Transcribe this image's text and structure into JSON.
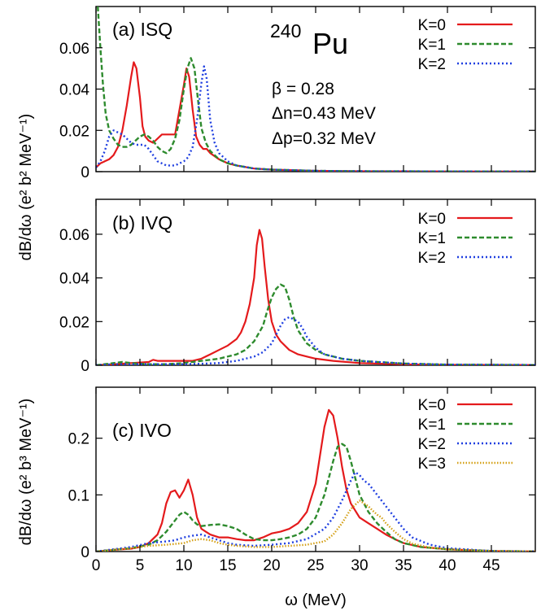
{
  "chart_data": [
    {
      "type": "line",
      "panel_label": "(a) ISQ",
      "ylabel": "dB/dω (e² b² MeV⁻¹)",
      "xlim": [
        0,
        50
      ],
      "ylim": [
        0,
        0.08
      ],
      "yticks": [
        "0",
        "0.02",
        "0.04",
        "0.06"
      ],
      "ytick_values": [
        0,
        0.02,
        0.04,
        0.06
      ],
      "nucleus": {
        "mass": "240",
        "symbol": "Pu"
      },
      "annotations": [
        "β = 0.28",
        "Δn=0.43 MeV",
        "Δp=0.32 MeV"
      ],
      "legend_position": "top-right",
      "series": [
        {
          "name": "K=0",
          "color": "#e41a1c",
          "dash": "solid",
          "x": [
            0,
            0.5,
            1,
            1.5,
            2,
            2.5,
            3,
            3.5,
            4,
            4.3,
            4.6,
            5,
            5.3,
            5.6,
            6,
            6.5,
            7,
            7.5,
            8,
            8.5,
            9,
            9.5,
            10,
            10.3,
            10.6,
            11,
            11.4,
            11.8,
            12.2,
            12.6,
            13,
            14,
            15,
            16,
            18,
            20,
            25,
            30,
            40,
            50
          ],
          "y": [
            0.002,
            0.004,
            0.005,
            0.006,
            0.008,
            0.012,
            0.02,
            0.032,
            0.046,
            0.053,
            0.05,
            0.036,
            0.022,
            0.017,
            0.015,
            0.014,
            0.016,
            0.018,
            0.018,
            0.018,
            0.018,
            0.03,
            0.042,
            0.05,
            0.046,
            0.03,
            0.017,
            0.013,
            0.011,
            0.011,
            0.009,
            0.006,
            0.004,
            0.003,
            0.0015,
            0.001,
            0.0004,
            0.0002,
            0.0001,
            5e-05
          ]
        },
        {
          "name": "K=1",
          "color": "#2e8b2e",
          "dash": "6,3",
          "x": [
            0.2,
            0.5,
            0.8,
            1.1,
            1.5,
            2,
            2.5,
            3,
            3.5,
            4,
            4.5,
            5,
            5.5,
            6,
            6.5,
            7,
            7.5,
            8,
            8.5,
            9,
            9.5,
            10,
            10.4,
            10.8,
            11.2,
            11.6,
            12,
            12.5,
            13,
            14,
            15,
            16,
            18,
            20,
            25,
            30,
            40,
            50
          ],
          "y": [
            0.08,
            0.06,
            0.042,
            0.028,
            0.02,
            0.016,
            0.013,
            0.012,
            0.012,
            0.013,
            0.015,
            0.017,
            0.018,
            0.017,
            0.015,
            0.012,
            0.01,
            0.009,
            0.011,
            0.016,
            0.025,
            0.04,
            0.05,
            0.055,
            0.05,
            0.035,
            0.021,
            0.014,
            0.01,
            0.006,
            0.004,
            0.003,
            0.0015,
            0.001,
            0.0004,
            0.0002,
            0.0001,
            5e-05
          ]
        },
        {
          "name": "K=2",
          "color": "#1f3fe0",
          "dash": "2,3",
          "x": [
            0,
            0.5,
            1,
            1.5,
            2,
            2.5,
            3,
            3.5,
            4,
            4.5,
            5,
            5.5,
            6,
            6.5,
            7,
            7.5,
            8,
            8.5,
            9,
            9.5,
            10,
            10.5,
            11,
            11.5,
            12,
            12.3,
            12.6,
            13,
            13.5,
            14,
            15,
            16,
            18,
            20,
            25,
            30,
            40,
            50
          ],
          "y": [
            0.002,
            0.005,
            0.01,
            0.017,
            0.02,
            0.019,
            0.018,
            0.016,
            0.014,
            0.013,
            0.013,
            0.013,
            0.011,
            0.008,
            0.005,
            0.004,
            0.003,
            0.003,
            0.003,
            0.004,
            0.005,
            0.007,
            0.012,
            0.025,
            0.043,
            0.051,
            0.045,
            0.025,
            0.014,
            0.009,
            0.005,
            0.003,
            0.0015,
            0.001,
            0.0004,
            0.0002,
            0.0001,
            5e-05
          ]
        }
      ]
    },
    {
      "type": "line",
      "panel_label": "(b) IVQ",
      "xlim": [
        0,
        50
      ],
      "ylim": [
        0,
        0.076
      ],
      "yticks": [
        "0",
        "0.02",
        "0.04",
        "0.06"
      ],
      "ytick_values": [
        0,
        0.02,
        0.04,
        0.06
      ],
      "legend_position": "top-right",
      "series": [
        {
          "name": "K=0",
          "color": "#e41a1c",
          "dash": "solid",
          "x": [
            0,
            2,
            4,
            6,
            6.5,
            7,
            8,
            9,
            10,
            11,
            12,
            13,
            14,
            15,
            16,
            16.5,
            17,
            17.5,
            18,
            18.3,
            18.6,
            18.9,
            19.2,
            19.6,
            20,
            20.5,
            21,
            22,
            23,
            24,
            25,
            27,
            30,
            35,
            40,
            50
          ],
          "y": [
            0,
            0.0005,
            0.001,
            0.0015,
            0.0025,
            0.002,
            0.002,
            0.002,
            0.002,
            0.002,
            0.003,
            0.005,
            0.007,
            0.009,
            0.012,
            0.015,
            0.02,
            0.028,
            0.04,
            0.055,
            0.062,
            0.058,
            0.045,
            0.03,
            0.02,
            0.014,
            0.011,
            0.007,
            0.005,
            0.004,
            0.003,
            0.002,
            0.001,
            0.0004,
            0.0002,
            0.0001
          ]
        },
        {
          "name": "K=1",
          "color": "#2e8b2e",
          "dash": "6,3",
          "x": [
            0,
            2,
            3,
            4,
            6,
            8,
            10,
            12,
            14,
            16,
            17,
            18,
            19,
            19.5,
            20,
            20.5,
            21,
            21.5,
            22,
            22.5,
            23,
            24,
            25,
            26,
            28,
            30,
            35,
            40,
            50
          ],
          "y": [
            0,
            0.001,
            0.0015,
            0.001,
            0.0005,
            0.0005,
            0.001,
            0.002,
            0.003,
            0.005,
            0.007,
            0.011,
            0.018,
            0.025,
            0.031,
            0.035,
            0.037,
            0.036,
            0.03,
            0.022,
            0.016,
            0.01,
            0.007,
            0.005,
            0.003,
            0.002,
            0.0008,
            0.0003,
            0.0001
          ]
        },
        {
          "name": "K=2",
          "color": "#1f3fe0",
          "dash": "2,3",
          "x": [
            0,
            2,
            4,
            6,
            8,
            10,
            12,
            14,
            16,
            18,
            19,
            20,
            20.5,
            21,
            21.5,
            22,
            22.5,
            23,
            23.5,
            24,
            25,
            26,
            27,
            28,
            30,
            35,
            40,
            50
          ],
          "y": [
            0,
            0.0005,
            0.0005,
            0.0005,
            0.0005,
            0.0005,
            0.0007,
            0.001,
            0.002,
            0.004,
            0.006,
            0.01,
            0.014,
            0.018,
            0.021,
            0.022,
            0.021,
            0.02,
            0.017,
            0.013,
            0.008,
            0.005,
            0.004,
            0.003,
            0.002,
            0.0008,
            0.0003,
            0.0001
          ]
        }
      ]
    },
    {
      "type": "line",
      "panel_label": "(c) IVO",
      "ylabel": "dB/dω (e² b³ MeV⁻¹)",
      "xlabel": "ω (MeV)",
      "xlim": [
        0,
        50
      ],
      "ylim": [
        0,
        0.29
      ],
      "yticks": [
        "0",
        "0.1",
        "0.2"
      ],
      "ytick_values": [
        0,
        0.1,
        0.2
      ],
      "xticks": [
        "0",
        "5",
        "10",
        "15",
        "20",
        "25",
        "30",
        "35",
        "40",
        "45"
      ],
      "xtick_values": [
        0,
        5,
        10,
        15,
        20,
        25,
        30,
        35,
        40,
        45
      ],
      "legend_position": "top-right",
      "series": [
        {
          "name": "K=0",
          "color": "#e41a1c",
          "dash": "solid",
          "x": [
            0,
            2,
            4,
            5,
            6,
            7,
            7.5,
            8,
            8.5,
            9,
            9.5,
            10,
            10.5,
            11,
            11.5,
            12,
            13,
            14,
            15,
            16,
            17,
            18,
            19,
            20,
            21,
            22,
            23,
            24,
            25,
            25.5,
            26,
            26.5,
            27,
            27.5,
            28,
            28.5,
            29,
            30,
            31,
            32,
            33,
            34,
            35,
            37,
            40,
            45,
            50
          ],
          "y": [
            0,
            0.003,
            0.005,
            0.008,
            0.015,
            0.03,
            0.05,
            0.085,
            0.105,
            0.108,
            0.095,
            0.108,
            0.127,
            0.1,
            0.06,
            0.04,
            0.03,
            0.025,
            0.025,
            0.022,
            0.02,
            0.02,
            0.025,
            0.032,
            0.035,
            0.04,
            0.05,
            0.07,
            0.12,
            0.17,
            0.22,
            0.25,
            0.24,
            0.2,
            0.15,
            0.11,
            0.085,
            0.06,
            0.05,
            0.04,
            0.03,
            0.022,
            0.015,
            0.008,
            0.004,
            0.001,
            0.0003
          ]
        },
        {
          "name": "K=1",
          "color": "#2e8b2e",
          "dash": "6,3",
          "x": [
            0,
            2,
            4,
            6,
            7,
            8,
            9,
            9.5,
            10,
            10.5,
            11,
            11.5,
            12,
            13,
            14,
            15,
            16,
            17,
            18,
            19,
            20,
            21,
            22,
            23,
            24,
            25,
            26,
            27,
            27.5,
            28,
            28.5,
            29,
            29.5,
            30,
            31,
            32,
            33,
            34,
            35,
            37,
            40,
            45,
            50
          ],
          "y": [
            0,
            0.003,
            0.006,
            0.012,
            0.02,
            0.035,
            0.055,
            0.065,
            0.07,
            0.065,
            0.055,
            0.048,
            0.045,
            0.047,
            0.048,
            0.045,
            0.04,
            0.03,
            0.022,
            0.02,
            0.02,
            0.022,
            0.025,
            0.03,
            0.04,
            0.06,
            0.1,
            0.16,
            0.185,
            0.19,
            0.185,
            0.16,
            0.13,
            0.1,
            0.07,
            0.05,
            0.035,
            0.022,
            0.015,
            0.008,
            0.004,
            0.001,
            0.0003
          ]
        },
        {
          "name": "K=2",
          "color": "#1f3fe0",
          "dash": "2,3",
          "x": [
            0,
            2,
            4,
            6,
            8,
            9,
            10,
            11,
            12,
            13,
            14,
            15,
            16,
            18,
            20,
            22,
            24,
            26,
            27,
            28,
            29,
            29.5,
            30,
            30.5,
            31,
            32,
            33,
            34,
            35,
            36,
            38,
            40,
            45,
            50
          ],
          "y": [
            0,
            0.004,
            0.008,
            0.015,
            0.018,
            0.02,
            0.025,
            0.028,
            0.03,
            0.025,
            0.02,
            0.015,
            0.012,
            0.01,
            0.012,
            0.015,
            0.022,
            0.04,
            0.06,
            0.09,
            0.125,
            0.14,
            0.135,
            0.125,
            0.12,
            0.1,
            0.08,
            0.06,
            0.04,
            0.025,
            0.012,
            0.006,
            0.001,
            0.0003
          ]
        },
        {
          "name": "K=3",
          "color": "#d4a017",
          "dash": "1.5,2",
          "x": [
            0,
            2,
            4,
            6,
            8,
            10,
            11,
            12,
            13,
            14,
            15,
            16,
            18,
            20,
            22,
            24,
            26,
            27,
            28,
            29,
            30,
            30.5,
            31,
            31.5,
            32,
            32.5,
            33,
            34,
            35,
            36,
            38,
            40,
            45,
            50
          ],
          "y": [
            0,
            0.003,
            0.006,
            0.01,
            0.012,
            0.015,
            0.02,
            0.022,
            0.02,
            0.015,
            0.012,
            0.01,
            0.008,
            0.008,
            0.01,
            0.012,
            0.018,
            0.03,
            0.05,
            0.075,
            0.09,
            0.085,
            0.08,
            0.072,
            0.065,
            0.06,
            0.05,
            0.035,
            0.022,
            0.014,
            0.007,
            0.004,
            0.001,
            0.0003
          ]
        }
      ]
    }
  ]
}
